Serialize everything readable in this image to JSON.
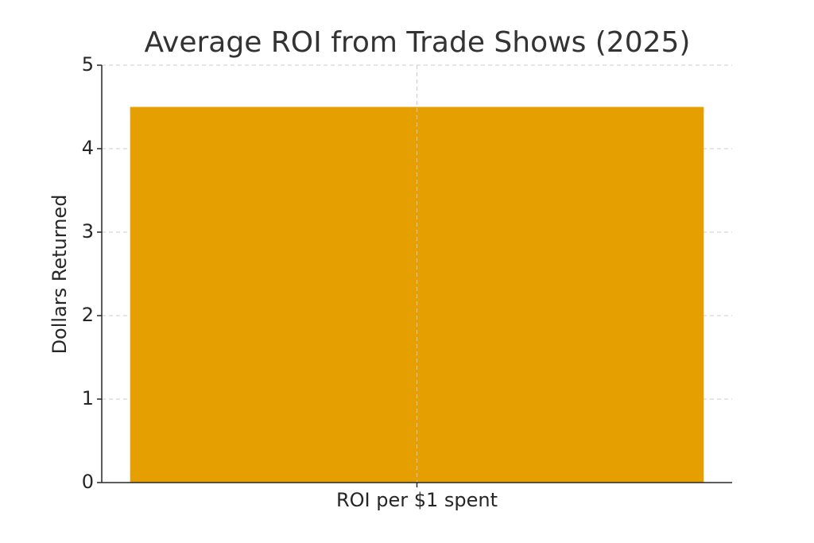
{
  "chart_data": {
    "type": "bar",
    "title": "Average ROI from Trade Shows (2025)",
    "y_label": "Dollars Returned",
    "categories": [
      "ROI per $1 spent"
    ],
    "values": [
      4.5
    ],
    "color": "#e69f00",
    "ylim": [
      0,
      5
    ],
    "yticks": [
      0,
      1,
      2,
      3,
      4,
      5
    ],
    "grid": true
  }
}
